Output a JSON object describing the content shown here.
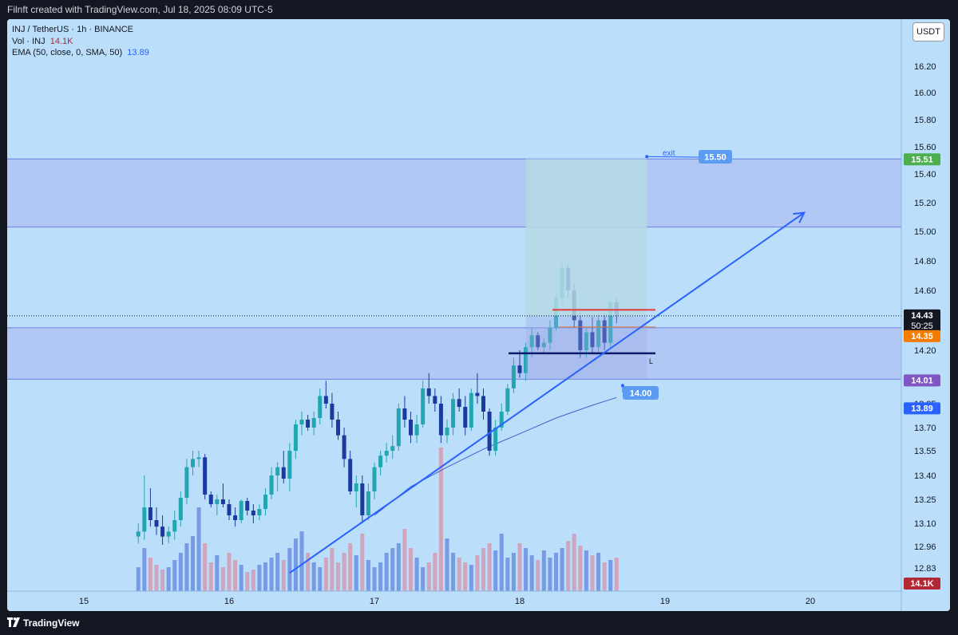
{
  "header": {
    "title": "Filnft created with TradingView.com, Jul 18, 2025 08:09 UTC-5"
  },
  "legend": {
    "symbol": "INJ / TetherUS · 1h · BINANCE",
    "vol_label": "Vol · INJ",
    "vol_value": "14.1K",
    "ema_label": "EMA (50, close, 0, SMA, 50)",
    "ema_value": "13.89"
  },
  "currency": "USDT",
  "footer": {
    "brand": "TradingView"
  },
  "colors": {
    "background": "#bbdefb",
    "bull": "#22a6b2",
    "bear": "#1a3a9e",
    "vol_bull": "#6b8fe0",
    "vol_bear": "#d39bb3",
    "trendline": "#2962ff",
    "zone": "#aab7f0",
    "target_zone": "#b5d9e4",
    "exit_label": "#5b9cf2",
    "ema_line": "#3d63c9"
  },
  "chart_data": {
    "type": "candlestick",
    "timeframe": "1h",
    "y_axis_ticks": [
      "16.20",
      "16.00",
      "15.80",
      "15.60",
      "15.40",
      "15.20",
      "15.00",
      "14.80",
      "14.60",
      "14.20",
      "13.85",
      "13.70",
      "13.55",
      "13.40",
      "13.25",
      "13.10",
      "12.96",
      "12.83"
    ],
    "x_axis_ticks": [
      "15",
      "16",
      "17",
      "18",
      "19",
      "20"
    ],
    "x_range": [
      "2025-07-14 09:00",
      "2025-07-20 23:00"
    ],
    "candles": [
      {
        "t": "2025-07-15 09:00",
        "o": 13.02,
        "h": 13.1,
        "l": 12.98,
        "c": 13.05
      },
      {
        "t": "2025-07-15 10:00",
        "o": 13.05,
        "h": 13.4,
        "l": 13.0,
        "c": 13.2
      },
      {
        "t": "2025-07-15 11:00",
        "o": 13.2,
        "h": 13.32,
        "l": 13.08,
        "c": 13.12
      },
      {
        "t": "2025-07-15 12:00",
        "o": 13.12,
        "h": 13.2,
        "l": 13.03,
        "c": 13.08
      },
      {
        "t": "2025-07-15 13:00",
        "o": 13.08,
        "h": 13.15,
        "l": 12.97,
        "c": 13.02
      },
      {
        "t": "2025-07-15 14:00",
        "o": 13.02,
        "h": 13.08,
        "l": 12.98,
        "c": 13.05
      },
      {
        "t": "2025-07-15 15:00",
        "o": 13.05,
        "h": 13.18,
        "l": 13.0,
        "c": 13.12
      },
      {
        "t": "2025-07-15 16:00",
        "o": 13.12,
        "h": 13.3,
        "l": 13.08,
        "c": 13.26
      },
      {
        "t": "2025-07-15 17:00",
        "o": 13.26,
        "h": 13.5,
        "l": 13.22,
        "c": 13.45
      },
      {
        "t": "2025-07-15 18:00",
        "o": 13.45,
        "h": 13.55,
        "l": 13.4,
        "c": 13.5
      },
      {
        "t": "2025-07-15 19:00",
        "o": 13.5,
        "h": 13.55,
        "l": 13.45,
        "c": 13.51
      },
      {
        "t": "2025-07-15 20:00",
        "o": 13.51,
        "h": 13.53,
        "l": 13.25,
        "c": 13.28
      },
      {
        "t": "2025-07-15 21:00",
        "o": 13.28,
        "h": 13.3,
        "l": 13.2,
        "c": 13.22
      },
      {
        "t": "2025-07-15 22:00",
        "o": 13.22,
        "h": 13.28,
        "l": 13.15,
        "c": 13.25
      },
      {
        "t": "2025-07-15 23:00",
        "o": 13.25,
        "h": 13.35,
        "l": 13.2,
        "c": 13.22
      },
      {
        "t": "2025-07-16 00:00",
        "o": 13.22,
        "h": 13.25,
        "l": 13.12,
        "c": 13.15
      },
      {
        "t": "2025-07-16 01:00",
        "o": 13.15,
        "h": 13.2,
        "l": 13.08,
        "c": 13.12
      },
      {
        "t": "2025-07-16 02:00",
        "o": 13.12,
        "h": 13.25,
        "l": 13.1,
        "c": 13.24
      },
      {
        "t": "2025-07-16 03:00",
        "o": 13.24,
        "h": 13.26,
        "l": 13.15,
        "c": 13.18
      },
      {
        "t": "2025-07-16 04:00",
        "o": 13.18,
        "h": 13.22,
        "l": 13.1,
        "c": 13.15
      },
      {
        "t": "2025-07-16 05:00",
        "o": 13.15,
        "h": 13.22,
        "l": 13.12,
        "c": 13.19
      },
      {
        "t": "2025-07-16 06:00",
        "o": 13.19,
        "h": 13.32,
        "l": 13.15,
        "c": 13.28
      },
      {
        "t": "2025-07-16 07:00",
        "o": 13.28,
        "h": 13.45,
        "l": 13.25,
        "c": 13.4
      },
      {
        "t": "2025-07-16 08:00",
        "o": 13.4,
        "h": 13.48,
        "l": 13.3,
        "c": 13.45
      },
      {
        "t": "2025-07-16 09:00",
        "o": 13.45,
        "h": 13.55,
        "l": 13.35,
        "c": 13.38
      },
      {
        "t": "2025-07-16 10:00",
        "o": 13.38,
        "h": 13.6,
        "l": 13.3,
        "c": 13.55
      },
      {
        "t": "2025-07-16 11:00",
        "o": 13.55,
        "h": 13.75,
        "l": 13.5,
        "c": 13.72
      },
      {
        "t": "2025-07-16 12:00",
        "o": 13.72,
        "h": 13.8,
        "l": 13.65,
        "c": 13.75
      },
      {
        "t": "2025-07-16 13:00",
        "o": 13.75,
        "h": 13.78,
        "l": 13.68,
        "c": 13.7
      },
      {
        "t": "2025-07-16 14:00",
        "o": 13.7,
        "h": 13.8,
        "l": 13.65,
        "c": 13.76
      },
      {
        "t": "2025-07-16 15:00",
        "o": 13.76,
        "h": 13.95,
        "l": 13.72,
        "c": 13.9
      },
      {
        "t": "2025-07-16 16:00",
        "o": 13.9,
        "h": 14.0,
        "l": 13.82,
        "c": 13.85
      },
      {
        "t": "2025-07-16 17:00",
        "o": 13.85,
        "h": 13.92,
        "l": 13.7,
        "c": 13.75
      },
      {
        "t": "2025-07-16 18:00",
        "o": 13.75,
        "h": 13.8,
        "l": 13.62,
        "c": 13.65
      },
      {
        "t": "2025-07-16 19:00",
        "o": 13.65,
        "h": 13.7,
        "l": 13.45,
        "c": 13.5
      },
      {
        "t": "2025-07-16 20:00",
        "o": 13.5,
        "h": 13.55,
        "l": 13.28,
        "c": 13.3
      },
      {
        "t": "2025-07-16 21:00",
        "o": 13.3,
        "h": 13.4,
        "l": 13.2,
        "c": 13.35
      },
      {
        "t": "2025-07-16 22:00",
        "o": 13.35,
        "h": 13.4,
        "l": 13.1,
        "c": 13.15
      },
      {
        "t": "2025-07-16 23:00",
        "o": 13.15,
        "h": 13.35,
        "l": 13.12,
        "c": 13.3
      },
      {
        "t": "2025-07-17 00:00",
        "o": 13.3,
        "h": 13.48,
        "l": 13.25,
        "c": 13.45
      },
      {
        "t": "2025-07-17 01:00",
        "o": 13.45,
        "h": 13.55,
        "l": 13.4,
        "c": 13.52
      },
      {
        "t": "2025-07-17 02:00",
        "o": 13.52,
        "h": 13.6,
        "l": 13.48,
        "c": 13.55
      },
      {
        "t": "2025-07-17 03:00",
        "o": 13.55,
        "h": 13.65,
        "l": 13.5,
        "c": 13.58
      },
      {
        "t": "2025-07-17 04:00",
        "o": 13.58,
        "h": 13.85,
        "l": 13.55,
        "c": 13.82
      },
      {
        "t": "2025-07-17 05:00",
        "o": 13.82,
        "h": 13.9,
        "l": 13.7,
        "c": 13.75
      },
      {
        "t": "2025-07-17 06:00",
        "o": 13.75,
        "h": 13.8,
        "l": 13.6,
        "c": 13.65
      },
      {
        "t": "2025-07-17 07:00",
        "o": 13.65,
        "h": 13.78,
        "l": 13.6,
        "c": 13.72
      },
      {
        "t": "2025-07-17 08:00",
        "o": 13.72,
        "h": 14.0,
        "l": 13.7,
        "c": 13.95
      },
      {
        "t": "2025-07-17 09:00",
        "o": 13.95,
        "h": 14.05,
        "l": 13.85,
        "c": 13.9
      },
      {
        "t": "2025-07-17 10:00",
        "o": 13.9,
        "h": 13.95,
        "l": 13.8,
        "c": 13.85
      },
      {
        "t": "2025-07-17 11:00",
        "o": 13.85,
        "h": 13.9,
        "l": 13.6,
        "c": 13.65
      },
      {
        "t": "2025-07-17 12:00",
        "o": 13.65,
        "h": 13.75,
        "l": 13.6,
        "c": 13.7
      },
      {
        "t": "2025-07-17 13:00",
        "o": 13.7,
        "h": 13.92,
        "l": 13.65,
        "c": 13.88
      },
      {
        "t": "2025-07-17 14:00",
        "o": 13.88,
        "h": 13.95,
        "l": 13.8,
        "c": 13.83
      },
      {
        "t": "2025-07-17 15:00",
        "o": 13.83,
        "h": 13.9,
        "l": 13.65,
        "c": 13.7
      },
      {
        "t": "2025-07-17 16:00",
        "o": 13.7,
        "h": 13.95,
        "l": 13.68,
        "c": 13.92
      },
      {
        "t": "2025-07-17 17:00",
        "o": 13.92,
        "h": 14.05,
        "l": 13.85,
        "c": 13.9
      },
      {
        "t": "2025-07-17 18:00",
        "o": 13.9,
        "h": 13.95,
        "l": 13.75,
        "c": 13.8
      },
      {
        "t": "2025-07-17 19:00",
        "o": 13.8,
        "h": 13.82,
        "l": 13.52,
        "c": 13.55
      },
      {
        "t": "2025-07-17 20:00",
        "o": 13.55,
        "h": 13.75,
        "l": 13.52,
        "c": 13.7
      },
      {
        "t": "2025-07-17 21:00",
        "o": 13.7,
        "h": 13.85,
        "l": 13.68,
        "c": 13.8
      },
      {
        "t": "2025-07-17 22:00",
        "o": 13.8,
        "h": 13.98,
        "l": 13.78,
        "c": 13.95
      },
      {
        "t": "2025-07-17 23:00",
        "o": 13.95,
        "h": 14.15,
        "l": 13.92,
        "c": 14.1
      },
      {
        "t": "2025-07-18 00:00",
        "o": 14.1,
        "h": 14.2,
        "l": 14.02,
        "c": 14.05
      },
      {
        "t": "2025-07-18 01:00",
        "o": 14.05,
        "h": 14.25,
        "l": 14.0,
        "c": 14.22
      },
      {
        "t": "2025-07-18 02:00",
        "o": 14.22,
        "h": 14.35,
        "l": 14.15,
        "c": 14.3
      },
      {
        "t": "2025-07-18 03:00",
        "o": 14.3,
        "h": 14.32,
        "l": 14.2,
        "c": 14.22
      },
      {
        "t": "2025-07-18 04:00",
        "o": 14.22,
        "h": 14.28,
        "l": 14.18,
        "c": 14.25
      },
      {
        "t": "2025-07-18 05:00",
        "o": 14.25,
        "h": 14.4,
        "l": 14.2,
        "c": 14.35
      },
      {
        "t": "2025-07-18 06:00",
        "o": 14.35,
        "h": 14.58,
        "l": 14.33,
        "c": 14.55
      },
      {
        "t": "2025-07-18 07:00",
        "o": 14.55,
        "h": 14.8,
        "l": 14.5,
        "c": 14.75
      },
      {
        "t": "2025-07-18 08:00",
        "o": 14.75,
        "h": 14.78,
        "l": 14.55,
        "c": 14.6
      },
      {
        "t": "2025-07-18 09:00",
        "o": 14.6,
        "h": 14.65,
        "l": 14.35,
        "c": 14.4
      },
      {
        "t": "2025-07-18 10:00",
        "o": 14.4,
        "h": 14.45,
        "l": 14.15,
        "c": 14.2
      },
      {
        "t": "2025-07-18 11:00",
        "o": 14.2,
        "h": 14.35,
        "l": 14.15,
        "c": 14.32
      },
      {
        "t": "2025-07-18 12:00",
        "o": 14.32,
        "h": 14.42,
        "l": 14.18,
        "c": 14.22
      },
      {
        "t": "2025-07-18 13:00",
        "o": 14.22,
        "h": 14.45,
        "l": 14.18,
        "c": 14.4
      },
      {
        "t": "2025-07-18 14:00",
        "o": 14.4,
        "h": 14.45,
        "l": 14.2,
        "c": 14.25
      },
      {
        "t": "2025-07-18 15:00",
        "o": 14.25,
        "h": 14.55,
        "l": 14.22,
        "c": 14.52
      },
      {
        "t": "2025-07-18 16:00",
        "o": 14.52,
        "h": 14.55,
        "l": 14.38,
        "c": 14.43
      }
    ],
    "volume": [
      1.0,
      1.8,
      1.4,
      1.1,
      0.9,
      1.0,
      1.3,
      1.6,
      2.0,
      2.3,
      3.5,
      2.0,
      1.2,
      1.5,
      1.0,
      1.6,
      1.3,
      1.1,
      0.8,
      0.9,
      1.1,
      1.2,
      1.4,
      1.6,
      1.3,
      1.8,
      2.2,
      2.5,
      1.6,
      1.2,
      1.0,
      1.4,
      1.8,
      1.2,
      1.6,
      2.0,
      1.5,
      2.4,
      1.3,
      1.0,
      1.2,
      1.6,
      1.8,
      2.0,
      2.6,
      1.8,
      1.4,
      1.0,
      1.2,
      1.6,
      6.0,
      2.2,
      1.6,
      1.4,
      1.2,
      1.1,
      1.5,
      1.8,
      2.0,
      1.7,
      2.4,
      1.4,
      1.6,
      2.0,
      1.8,
      1.5,
      1.3,
      1.7,
      1.4,
      1.6,
      1.8,
      2.1,
      2.4,
      1.9,
      1.7,
      1.5,
      1.6,
      1.2,
      1.3,
      1.4
    ],
    "ema": [
      {
        "t": "2025-07-17 00:00",
        "v": 13.15
      },
      {
        "t": "2025-07-17 06:00",
        "v": 13.33
      },
      {
        "t": "2025-07-17 12:00",
        "v": 13.45
      },
      {
        "t": "2025-07-17 18:00",
        "v": 13.56
      },
      {
        "t": "2025-07-18 00:00",
        "v": 13.66
      },
      {
        "t": "2025-07-18 06:00",
        "v": 13.76
      },
      {
        "t": "2025-07-18 12:00",
        "v": 13.84
      },
      {
        "t": "2025-07-18 16:00",
        "v": 13.89
      }
    ],
    "zones": [
      {
        "name": "upper-zone",
        "top": 15.51,
        "bottom": 15.03
      },
      {
        "name": "lower-zone",
        "top": 14.35,
        "bottom": 14.01
      }
    ],
    "trendline": {
      "from": {
        "t": "2025-07-16 10:00",
        "p": 12.8
      },
      "to": {
        "t": "2025-07-19 23:00",
        "p": 15.13
      }
    },
    "position": {
      "start": "2025-07-18 01:00",
      "end": "2025-07-18 21:00",
      "target": 15.5,
      "entry": 14.43,
      "stop": 14.18,
      "target_top": 15.51,
      "stop_bottom": 14.01
    },
    "entry_line": 14.43,
    "red_line": 14.47,
    "stop_line": 14.18,
    "stop_marker": "L",
    "exit_annotation": {
      "text": "exit",
      "price_label": "15.50",
      "anchor": {
        "t": "2025-07-18 21:00",
        "p": 15.51
      }
    },
    "low_annotation": {
      "price_label": "14.00",
      "anchor": {
        "t": "2025-07-18 17:00",
        "p": 14.0
      }
    },
    "price_badges": [
      {
        "label": "15.51",
        "color": "#4caf50"
      },
      {
        "label": "14.43",
        "color": "#131722",
        "sub": "50:25"
      },
      {
        "label": "14.35",
        "color": "#f57c00"
      },
      {
        "label": "14.01",
        "color": "#7e57c2"
      },
      {
        "label": "13.89",
        "color": "#2962ff"
      },
      {
        "label": "14.1K",
        "color": "#b22833"
      }
    ]
  }
}
